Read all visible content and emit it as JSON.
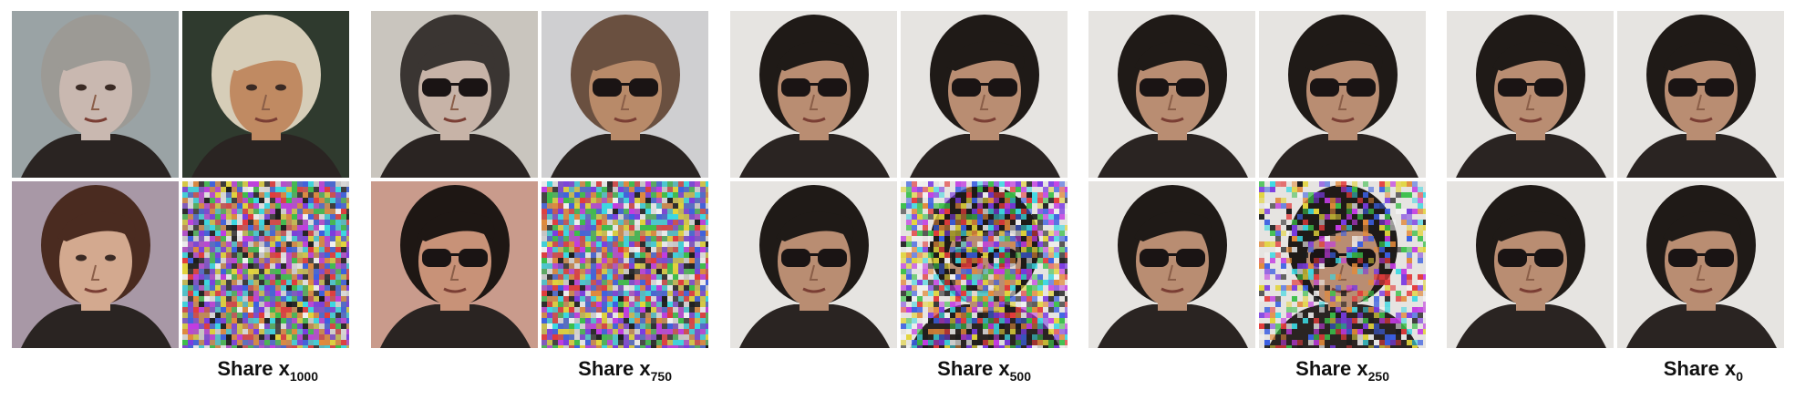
{
  "figure": {
    "panels": [
      {
        "caption": {
          "prefix": "Share x",
          "subscript": "1000"
        },
        "cells": [
          {
            "kind": "face",
            "desc": "face-woman-blonde",
            "bg": "#9aa3a5",
            "skin": "#c9b8b0",
            "hair": "#9c9a95",
            "glasses": false,
            "noise": 0
          },
          {
            "kind": "face",
            "desc": "face-man-smiling",
            "bg": "#2f3a2e",
            "skin": "#c08a62",
            "hair": "#d6cdb8",
            "glasses": false,
            "noise": 0
          },
          {
            "kind": "face",
            "desc": "face-woman-brunette",
            "bg": "#a898a6",
            "skin": "#d3a98f",
            "hair": "#4a2b20",
            "glasses": false,
            "noise": 0
          },
          {
            "kind": "noise",
            "desc": "pure-noise",
            "noise": 1
          }
        ]
      },
      {
        "caption": {
          "prefix": "Share x",
          "subscript": "750"
        },
        "cells": [
          {
            "kind": "face",
            "desc": "face-old-woman-sunglasses",
            "bg": "#c9c5be",
            "skin": "#c7b3a7",
            "hair": "#3a3532",
            "glasses": true,
            "noise": 0
          },
          {
            "kind": "face",
            "desc": "face-man-sunglasses",
            "bg": "#cfcfd1",
            "skin": "#b88a69",
            "hair": "#6a5040",
            "glasses": true,
            "noise": 0
          },
          {
            "kind": "face",
            "desc": "face-man-dark-hair-sunglasses",
            "bg": "#c99b8c",
            "skin": "#c89278",
            "hair": "#1e1714",
            "glasses": true,
            "noise": 0
          },
          {
            "kind": "noise",
            "desc": "pure-noise",
            "noise": 1
          }
        ]
      },
      {
        "caption": {
          "prefix": "Share x",
          "subscript": "500"
        },
        "cells": [
          {
            "kind": "face",
            "desc": "face-elvis-sunglasses",
            "bg": "#e6e4e1",
            "skin": "#b98d72",
            "hair": "#1f1a17",
            "glasses": true,
            "noise": 0
          },
          {
            "kind": "face",
            "desc": "face-elvis-sunglasses",
            "bg": "#e6e4e1",
            "skin": "#b98d72",
            "hair": "#1f1a17",
            "glasses": true,
            "noise": 0
          },
          {
            "kind": "face",
            "desc": "face-elvis-sunglasses",
            "bg": "#e6e4e1",
            "skin": "#b98d72",
            "hair": "#1f1a17",
            "glasses": true,
            "noise": 0
          },
          {
            "kind": "face",
            "desc": "face-elvis-heavy-noise",
            "bg": "#e6e4e1",
            "skin": "#b98d72",
            "hair": "#1f1a17",
            "glasses": true,
            "noise": 0.82
          }
        ]
      },
      {
        "caption": {
          "prefix": "Share x",
          "subscript": "250"
        },
        "cells": [
          {
            "kind": "face",
            "desc": "face-elvis-sunglasses",
            "bg": "#e6e4e1",
            "skin": "#b98d72",
            "hair": "#1f1a17",
            "glasses": true,
            "noise": 0
          },
          {
            "kind": "face",
            "desc": "face-elvis-sunglasses",
            "bg": "#e6e4e1",
            "skin": "#b98d72",
            "hair": "#1f1a17",
            "glasses": true,
            "noise": 0
          },
          {
            "kind": "face",
            "desc": "face-elvis-sunglasses",
            "bg": "#e6e4e1",
            "skin": "#b98d72",
            "hair": "#1f1a17",
            "glasses": true,
            "noise": 0
          },
          {
            "kind": "face",
            "desc": "face-elvis-medium-noise",
            "bg": "#e6e4e1",
            "skin": "#b98d72",
            "hair": "#1f1a17",
            "glasses": true,
            "noise": 0.5
          }
        ]
      },
      {
        "caption": {
          "prefix": "Share x",
          "subscript": "0"
        },
        "cells": [
          {
            "kind": "face",
            "desc": "face-elvis-sunglasses",
            "bg": "#e6e4e1",
            "skin": "#b98d72",
            "hair": "#1f1a17",
            "glasses": true,
            "noise": 0
          },
          {
            "kind": "face",
            "desc": "face-elvis-sunglasses",
            "bg": "#e6e4e1",
            "skin": "#b98d72",
            "hair": "#1f1a17",
            "glasses": true,
            "noise": 0
          },
          {
            "kind": "face",
            "desc": "face-elvis-sunglasses",
            "bg": "#e6e4e1",
            "skin": "#b98d72",
            "hair": "#1f1a17",
            "glasses": true,
            "noise": 0
          },
          {
            "kind": "face",
            "desc": "face-elvis-sunglasses",
            "bg": "#e6e4e1",
            "skin": "#b98d72",
            "hair": "#1f1a17",
            "glasses": true,
            "noise": 0
          }
        ]
      }
    ]
  }
}
